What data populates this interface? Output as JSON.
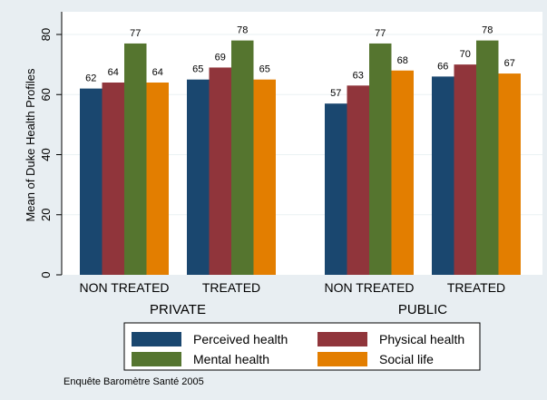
{
  "chart_data": {
    "type": "bar",
    "ylabel": "Mean of Duke Health Profiles",
    "ylim": [
      0,
      86
    ],
    "yticks": [
      0,
      20,
      40,
      60,
      80
    ],
    "grid": true,
    "legend_position": "bottom",
    "series": [
      {
        "name": "Perceived health",
        "color": "#1a476f"
      },
      {
        "name": "Physical health",
        "color": "#90353b"
      },
      {
        "name": "Mental health",
        "color": "#55752f"
      },
      {
        "name": "Social life",
        "color": "#e37e00"
      }
    ],
    "groups": [
      {
        "label": "PRIVATE",
        "categories": [
          {
            "label": "NON TREATED",
            "values": [
              62,
              64,
              77,
              64
            ],
            "value_labels": [
              "62",
              "64",
              "77",
              "64"
            ]
          },
          {
            "label": "TREATED",
            "values": [
              65,
              69,
              78,
              65
            ],
            "value_labels": [
              "65",
              "69",
              "78",
              "65"
            ]
          }
        ]
      },
      {
        "label": "PUBLIC",
        "categories": [
          {
            "label": "NON TREATED",
            "values": [
              57,
              63,
              77,
              68
            ],
            "value_labels": [
              "57",
              "63",
              "77",
              "68"
            ]
          },
          {
            "label": "TREATED",
            "values": [
              66,
              70,
              78,
              67
            ],
            "value_labels": [
              "66",
              "70",
              "78",
              "67"
            ]
          }
        ]
      }
    ],
    "note": "Enquête Baromètre Santé 2005"
  }
}
